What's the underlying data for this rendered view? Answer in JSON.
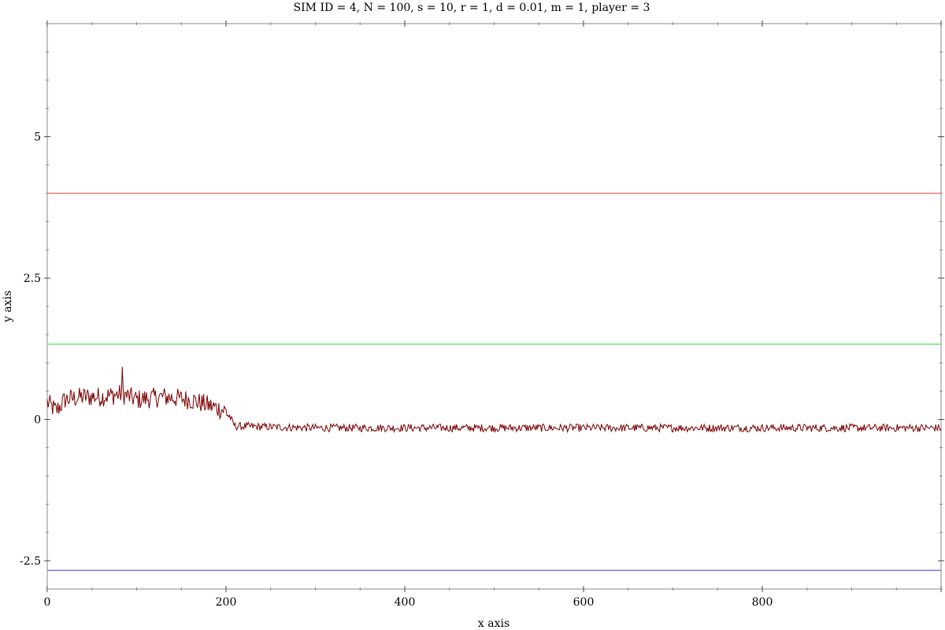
{
  "chart_data": {
    "type": "line",
    "title": "SIM ID = 4, N = 100, s = 10, r = 1, d = 0.01, m = 1, player = 3",
    "xlabel": "x axis",
    "ylabel": "y axis",
    "xlim": [
      0,
      1000
    ],
    "ylim": [
      -3,
      7
    ],
    "x_ticks": [
      0,
      200,
      400,
      600,
      800
    ],
    "x_tick_labels": [
      "0",
      "200",
      "400",
      "600",
      "800"
    ],
    "y_ticks": [
      -2.5,
      0,
      2.5,
      5
    ],
    "y_tick_labels": [
      "-2.5",
      "0",
      "2.5",
      "5"
    ],
    "grid": false,
    "series": [
      {
        "color": "#e88080",
        "kind": "hline",
        "y": 4.0
      },
      {
        "color": "#80e880",
        "kind": "hline",
        "y": 1.33
      },
      {
        "color": "#8080e0",
        "kind": "hline",
        "y": -2.67
      },
      {
        "color": "#7a0000",
        "kind": "noisy-line",
        "points": [
          {
            "x": 0,
            "y": 0.3
          },
          {
            "x": 10,
            "y": 0.15
          },
          {
            "x": 20,
            "y": 0.35
          },
          {
            "x": 40,
            "y": 0.4
          },
          {
            "x": 60,
            "y": 0.4
          },
          {
            "x": 84,
            "y": 0.45
          },
          {
            "x": 100,
            "y": 0.35
          },
          {
            "x": 130,
            "y": 0.4
          },
          {
            "x": 160,
            "y": 0.35
          },
          {
            "x": 190,
            "y": 0.2
          },
          {
            "x": 200,
            "y": 0.15
          },
          {
            "x": 210,
            "y": -0.12
          },
          {
            "x": 300,
            "y": -0.15
          },
          {
            "x": 500,
            "y": -0.15
          },
          {
            "x": 700,
            "y": -0.15
          },
          {
            "x": 900,
            "y": -0.15
          },
          {
            "x": 1000,
            "y": -0.15
          }
        ],
        "noise_amplitude_early": 0.18,
        "noise_amplitude_late": 0.07,
        "peak": {
          "x": 84,
          "y": 0.93
        }
      }
    ]
  }
}
